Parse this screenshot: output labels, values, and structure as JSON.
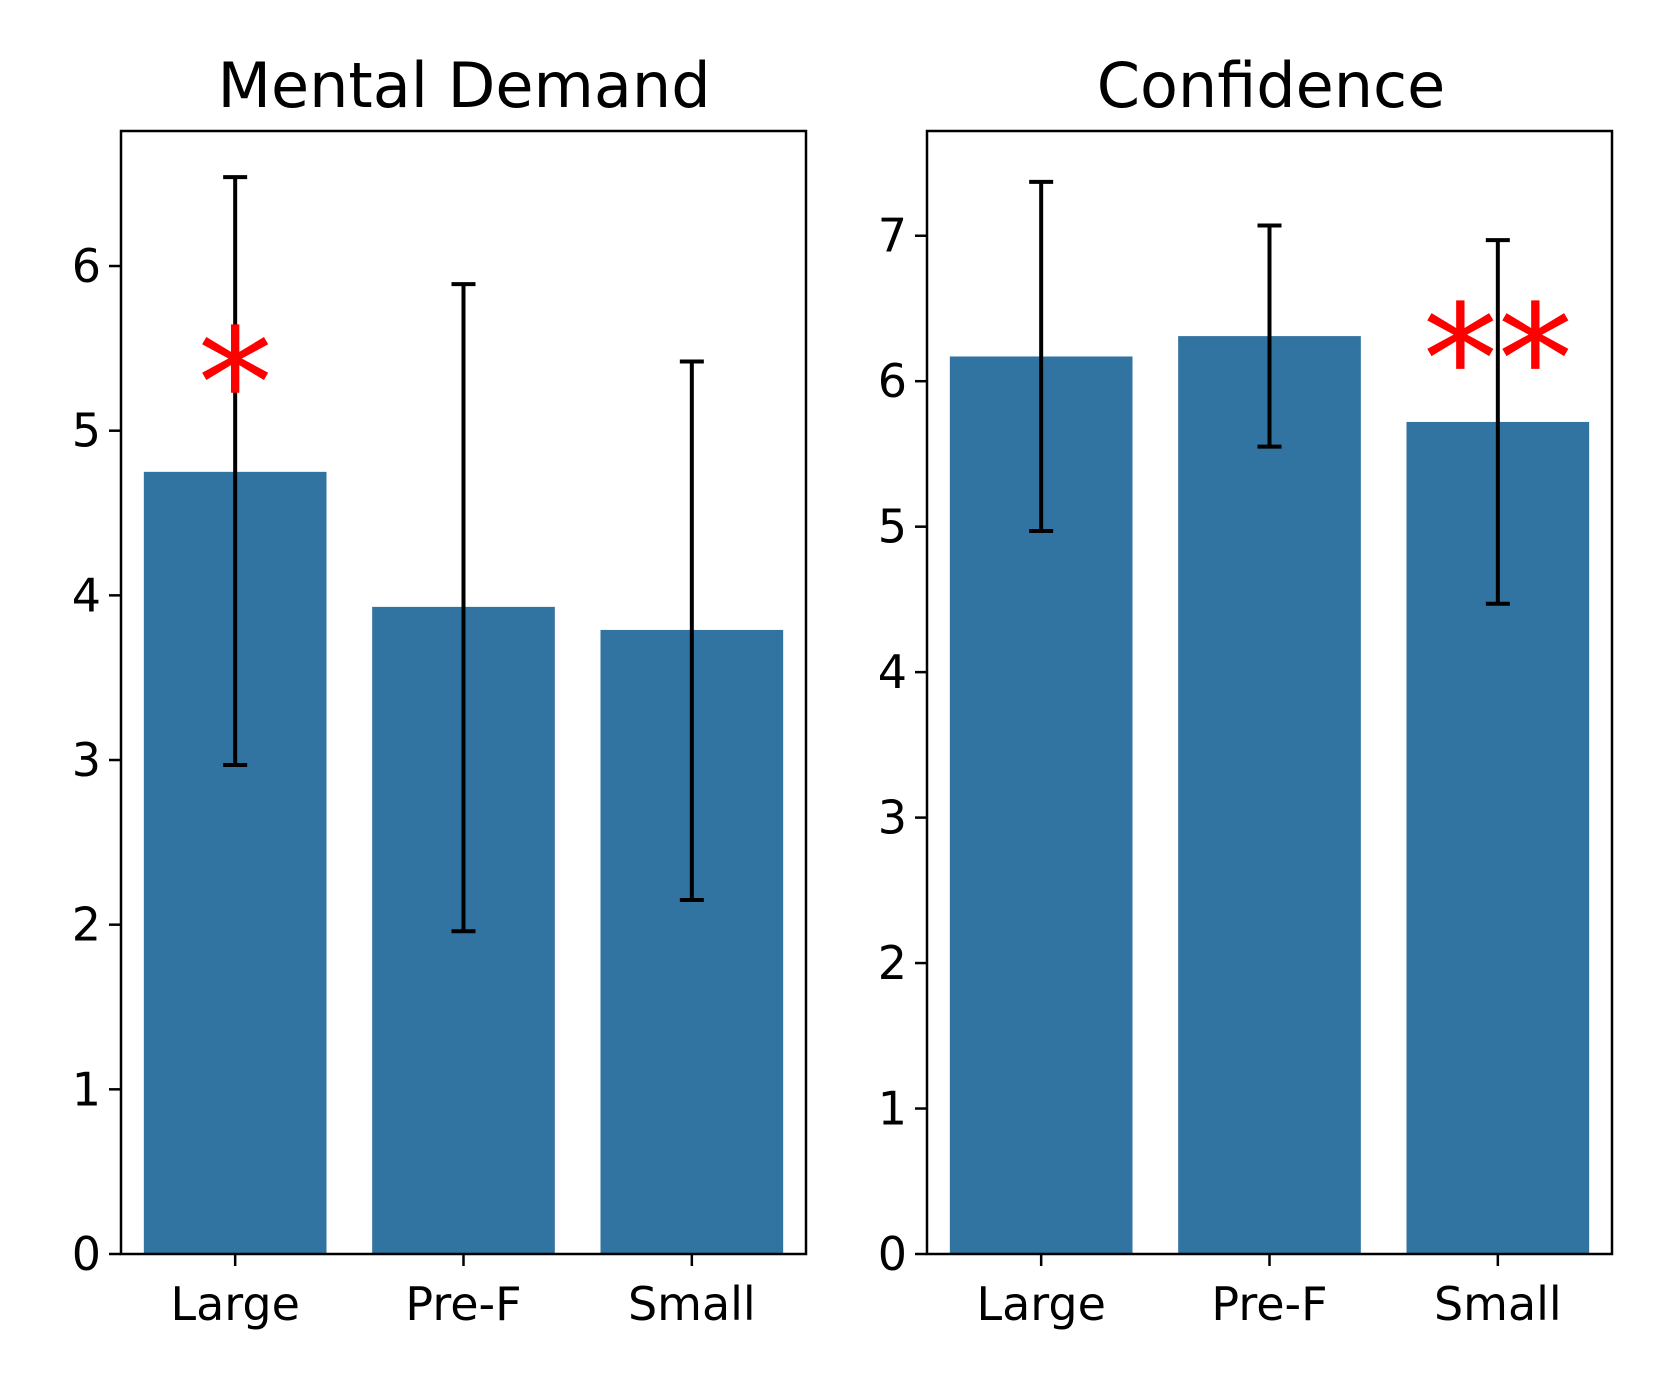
{
  "chart_data": [
    {
      "type": "bar",
      "title": "Mental Demand",
      "xlabel": "",
      "ylabel": "",
      "categories": [
        "Large",
        "Pre-F",
        "Small"
      ],
      "values": [
        4.75,
        3.93,
        3.79
      ],
      "error_low": [
        2.97,
        1.96,
        2.15
      ],
      "error_high": [
        6.54,
        5.89,
        5.42
      ],
      "ylim": [
        0,
        6.82
      ],
      "yticks": [
        "0",
        "1",
        "2",
        "3",
        "4",
        "5",
        "6"
      ],
      "significance": [
        {
          "category": "Large",
          "label": "*",
          "y": 5.65
        }
      ],
      "bar_color": "#3274a1",
      "significance_color": "#ff0000",
      "grid": false
    },
    {
      "type": "bar",
      "title": "Confidence",
      "xlabel": "",
      "ylabel": "",
      "categories": [
        "Large",
        "Pre-F",
        "Small"
      ],
      "values": [
        6.17,
        6.31,
        5.72
      ],
      "error_low": [
        4.97,
        5.55,
        4.47
      ],
      "error_high": [
        7.37,
        7.07,
        6.97
      ],
      "ylim": [
        0,
        7.72
      ],
      "yticks": [
        "0",
        "1",
        "2",
        "3",
        "4",
        "5",
        "6",
        "7"
      ],
      "significance": [
        {
          "category": "Small",
          "label": "**",
          "y": 6.56
        }
      ],
      "bar_color": "#3274a1",
      "significance_color": "#ff0000",
      "grid": false
    }
  ]
}
